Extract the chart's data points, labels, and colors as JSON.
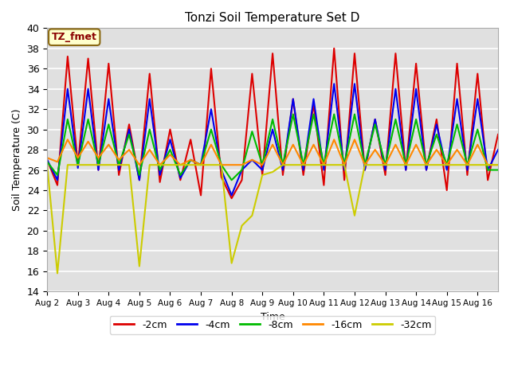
{
  "title": "Tonzi Soil Temperature Set D",
  "xlabel": "Time",
  "ylabel": "Soil Temperature (C)",
  "ylim": [
    14,
    40
  ],
  "yticks": [
    14,
    16,
    18,
    20,
    22,
    24,
    26,
    28,
    30,
    32,
    34,
    36,
    38,
    40
  ],
  "xtick_labels": [
    "Aug 2",
    "Aug 3",
    "Aug 4",
    "Aug 5",
    "Aug 6",
    "Aug 7",
    "Aug 8",
    "Aug 9",
    "Aug 10",
    "Aug 11",
    "Aug 12",
    "Aug 13",
    "Aug 14",
    "Aug 15",
    "Aug 16"
  ],
  "annotation_label": "TZ_fmet",
  "annotation_color": "#8B0000",
  "annotation_bg": "#ffffcc",
  "annotation_edge": "#8B6914",
  "bg_color": "#e0e0e0",
  "series": {
    "-2cm": {
      "color": "#dd0000",
      "lw": 1.5,
      "values": [
        27.0,
        24.5,
        37.2,
        26.5,
        37.0,
        26.0,
        36.5,
        25.5,
        30.5,
        25.0,
        35.5,
        24.8,
        30.0,
        25.0,
        29.0,
        23.5,
        36.0,
        25.3,
        23.2,
        25.0,
        35.5,
        25.5,
        37.5,
        25.5,
        33.0,
        25.5,
        32.5,
        24.5,
        38.0,
        25.0,
        37.5,
        26.0,
        31.0,
        25.5,
        37.5,
        26.0,
        36.5,
        26.0,
        31.0,
        24.0,
        36.5,
        25.5,
        35.5,
        25.0,
        29.5
      ]
    },
    "-4cm": {
      "color": "#0000ee",
      "lw": 1.5,
      "values": [
        27.0,
        25.0,
        34.0,
        26.2,
        34.0,
        26.0,
        33.0,
        26.0,
        30.0,
        25.0,
        33.0,
        25.5,
        29.0,
        25.2,
        27.0,
        26.5,
        32.0,
        26.0,
        23.5,
        26.0,
        27.0,
        26.0,
        30.0,
        26.0,
        33.0,
        26.0,
        33.0,
        26.0,
        34.5,
        26.0,
        34.5,
        26.0,
        31.0,
        26.0,
        34.0,
        26.0,
        34.0,
        26.0,
        30.5,
        26.0,
        33.0,
        26.0,
        33.0,
        26.0,
        28.0
      ]
    },
    "-8cm": {
      "color": "#00bb00",
      "lw": 1.5,
      "values": [
        26.8,
        25.5,
        31.0,
        26.5,
        31.0,
        26.5,
        30.5,
        26.5,
        29.5,
        25.5,
        30.0,
        26.0,
        28.0,
        25.5,
        27.0,
        26.5,
        30.0,
        26.5,
        25.0,
        26.0,
        29.8,
        26.5,
        31.0,
        26.5,
        31.5,
        26.5,
        31.5,
        26.5,
        31.5,
        26.5,
        31.5,
        26.5,
        30.5,
        26.5,
        31.0,
        26.5,
        31.0,
        26.5,
        29.5,
        26.5,
        30.5,
        26.5,
        30.0,
        26.0,
        26.0
      ]
    },
    "-16cm": {
      "color": "#ff8800",
      "lw": 1.5,
      "values": [
        27.2,
        26.8,
        29.0,
        27.2,
        28.8,
        27.2,
        28.5,
        27.0,
        28.0,
        26.5,
        28.0,
        26.5,
        27.5,
        26.5,
        27.0,
        26.5,
        28.5,
        26.5,
        26.5,
        26.5,
        27.0,
        26.5,
        28.5,
        26.5,
        28.5,
        26.5,
        28.5,
        26.5,
        29.0,
        26.5,
        29.0,
        26.5,
        28.0,
        26.5,
        28.5,
        26.5,
        28.5,
        26.5,
        28.0,
        26.5,
        28.0,
        26.5,
        28.5,
        26.5,
        26.5
      ]
    },
    "-32cm": {
      "color": "#cccc00",
      "lw": 1.5,
      "values": [
        26.5,
        15.8,
        26.5,
        26.5,
        26.5,
        26.5,
        26.5,
        26.5,
        26.5,
        16.5,
        26.5,
        26.5,
        26.5,
        26.5,
        26.5,
        26.5,
        26.5,
        26.5,
        16.8,
        20.5,
        21.5,
        25.5,
        25.8,
        26.5,
        26.5,
        26.5,
        26.5,
        26.5,
        26.5,
        26.5,
        21.5,
        26.5,
        26.5,
        26.5,
        26.5,
        26.5,
        26.5,
        26.5,
        26.5,
        26.5,
        26.5,
        26.5,
        26.5,
        26.5,
        26.5
      ]
    }
  },
  "legend_entries": [
    "-2cm",
    "-4cm",
    "-8cm",
    "-16cm",
    "-32cm"
  ],
  "legend_colors": [
    "#dd0000",
    "#0000ee",
    "#00bb00",
    "#ff8800",
    "#cccc00"
  ]
}
